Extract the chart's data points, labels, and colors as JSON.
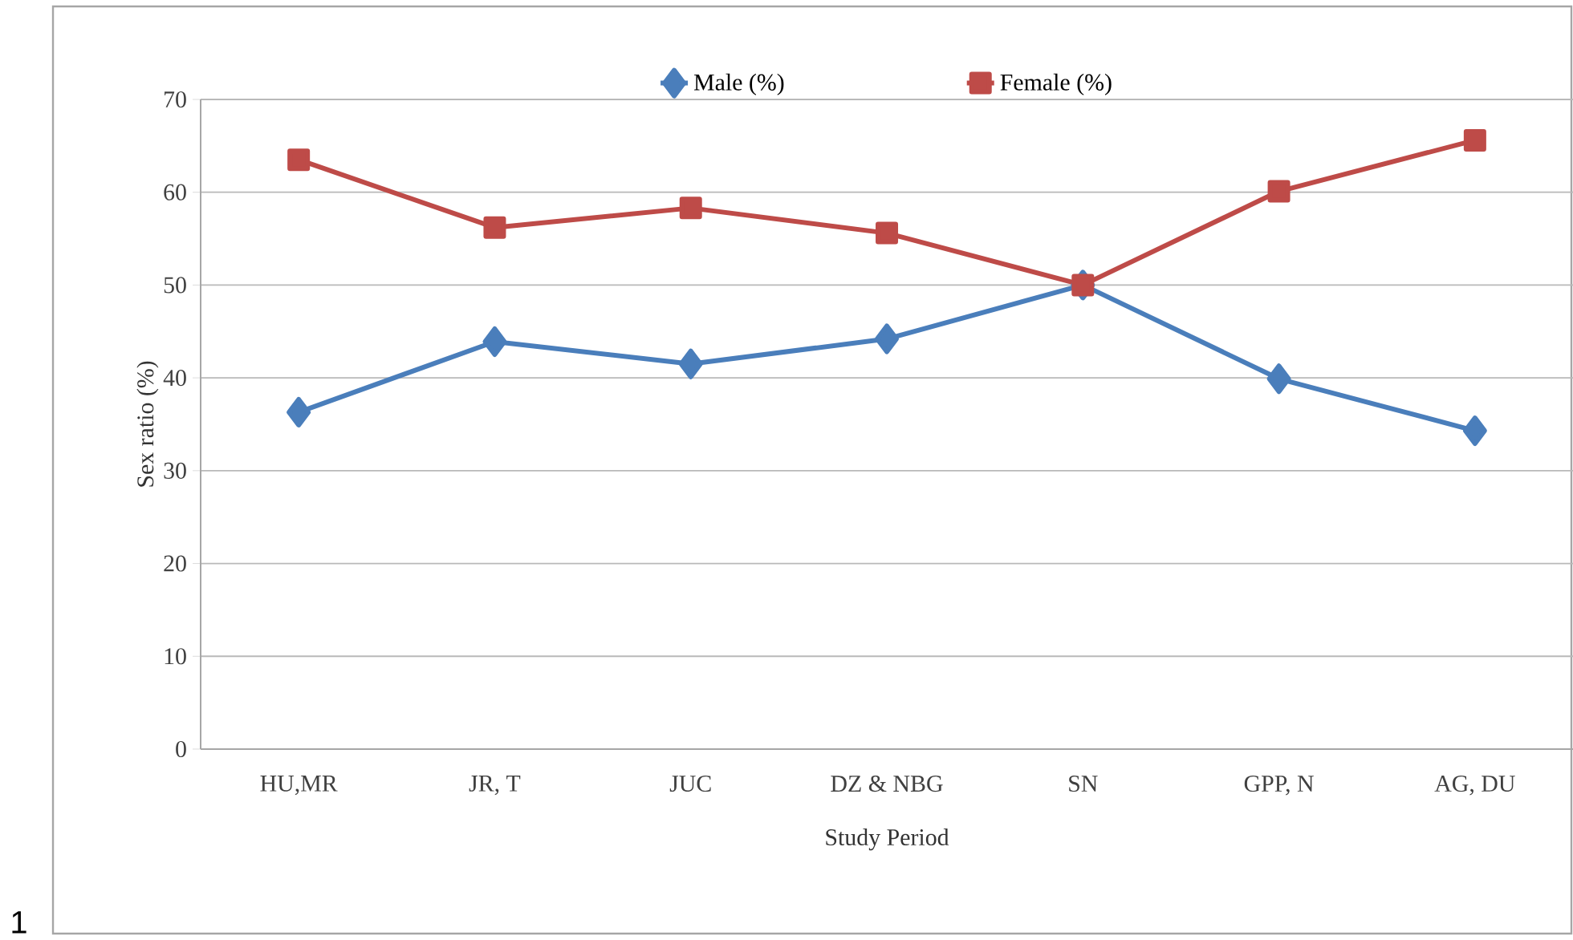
{
  "chart_data": {
    "type": "line",
    "xlabel": "Study Period",
    "ylabel": "Sex ratio (%)",
    "categories": [
      "HU,MR",
      "JR, T",
      "JUC",
      "DZ & NBG",
      "SN",
      "GPP, N",
      "AG, DU"
    ],
    "series": [
      {
        "name": "Male (%)",
        "color": "#4a7ebb",
        "marker": "diamond",
        "values": [
          36.3,
          43.9,
          41.5,
          44.2,
          50.0,
          39.9,
          34.3
        ]
      },
      {
        "name": "Female (%)",
        "color": "#be4b48",
        "marker": "square",
        "values": [
          63.5,
          56.2,
          58.3,
          55.6,
          50.0,
          60.1,
          65.6
        ]
      }
    ],
    "ylim": [
      0,
      70
    ],
    "yticks": [
      0,
      10,
      20,
      30,
      40,
      50,
      60,
      70
    ],
    "grid": "y",
    "legend": "top",
    "line_style": "solid",
    "annotations": [
      "1"
    ]
  }
}
